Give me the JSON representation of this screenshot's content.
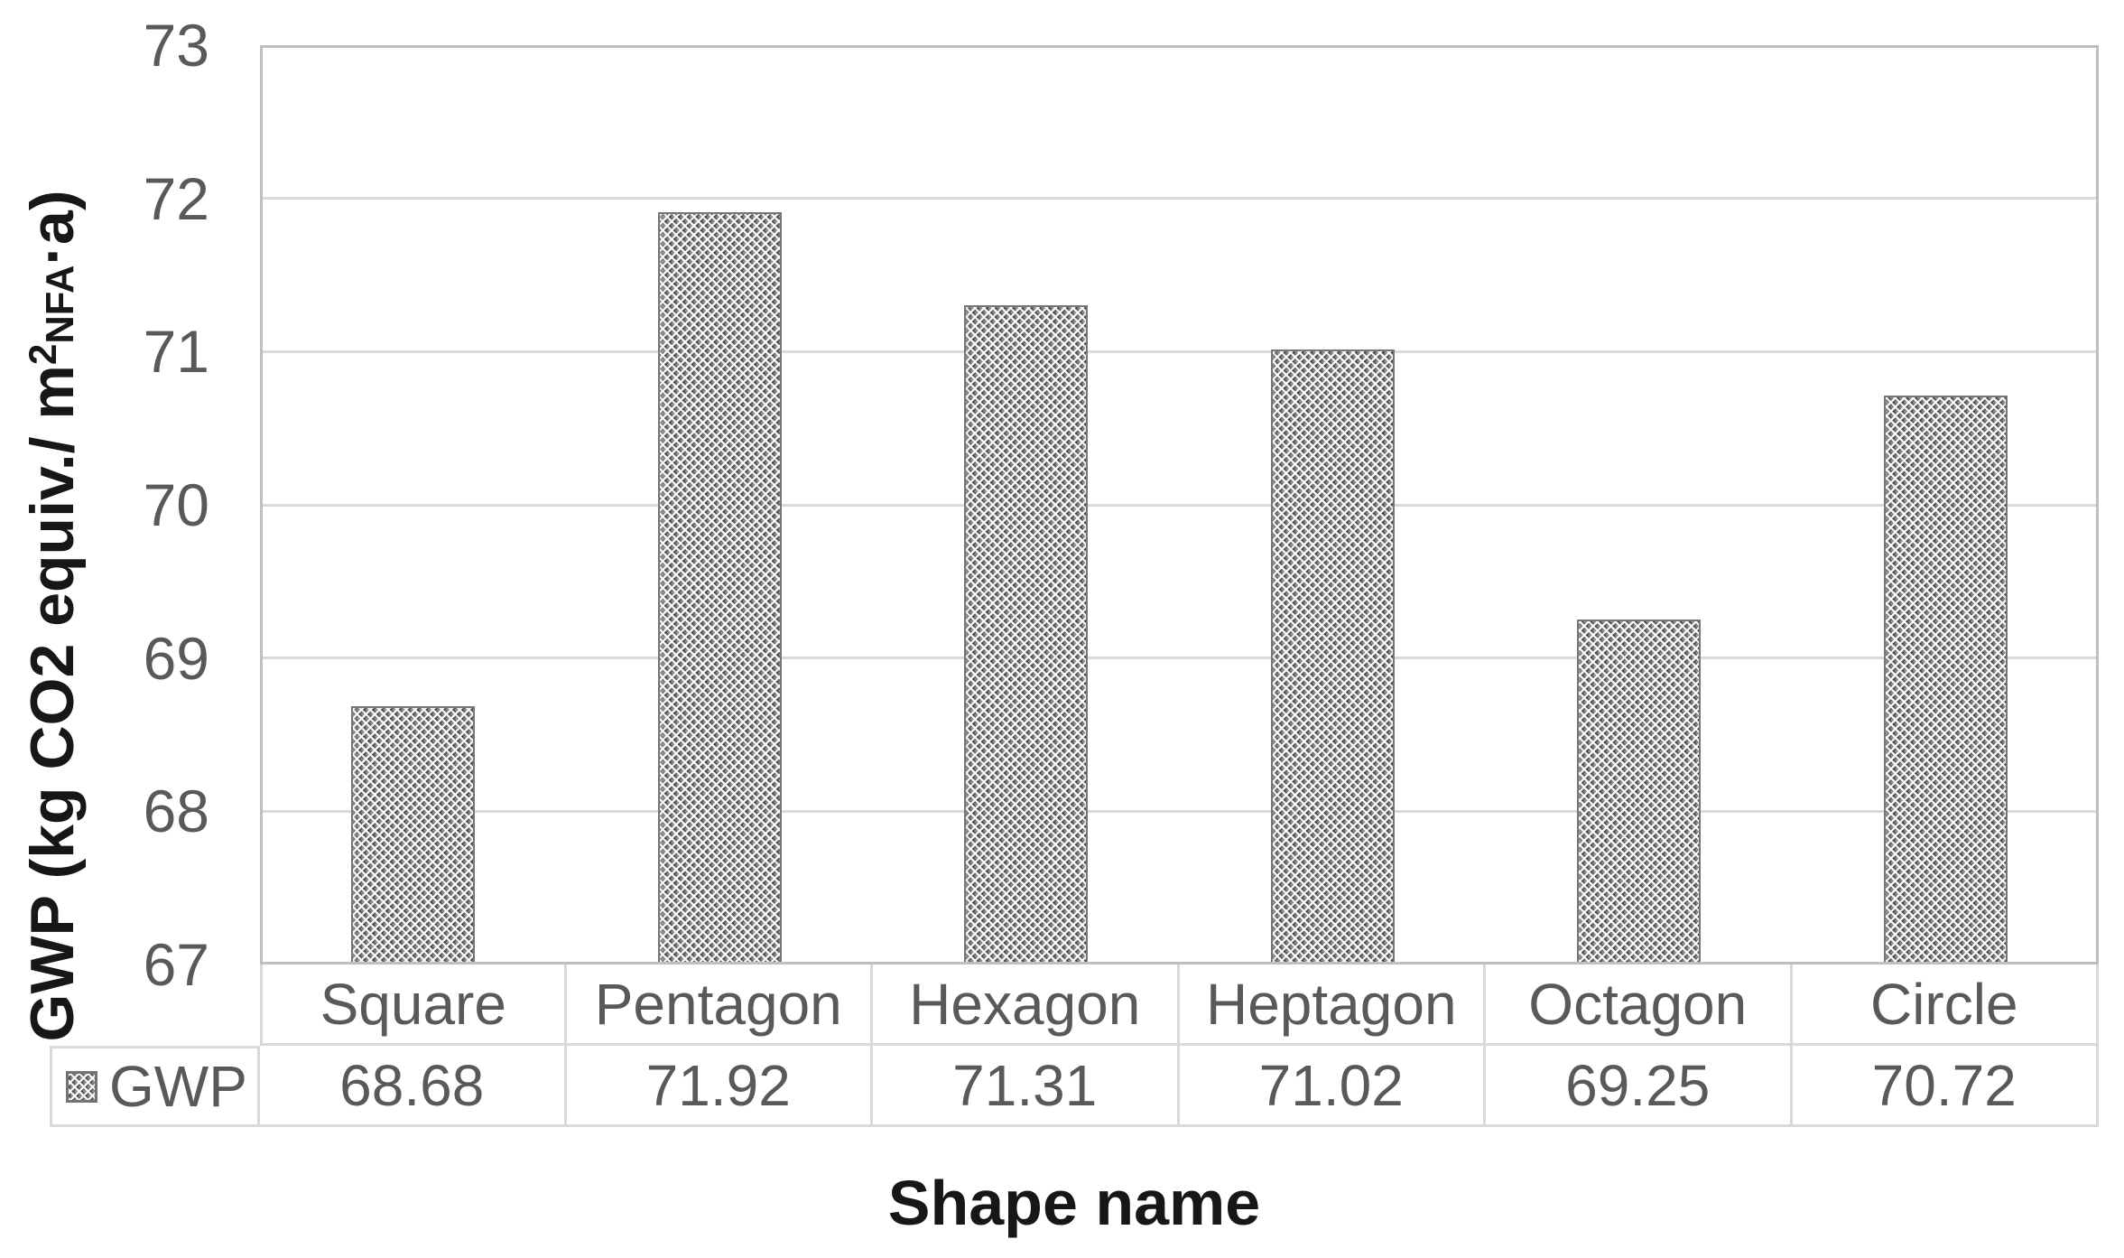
{
  "chart_data": {
    "type": "bar",
    "title": "",
    "categories": [
      "Square",
      "Pentagon",
      "Hexagon",
      "Heptagon",
      "Octagon",
      "Circle"
    ],
    "series": [
      {
        "name": "GWP",
        "values": [
          68.68,
          71.92,
          71.31,
          71.02,
          69.25,
          70.72
        ]
      }
    ],
    "xlabel": "Shape name",
    "ylabel": "GWP (kg CO2 equiv./ m²NFA·a)",
    "ylabel_parts": {
      "pre": "GWP (kg CO2 equiv./ m",
      "sup": "2",
      "small": "NFA",
      "post": "·a)"
    },
    "ylim": [
      67,
      73
    ],
    "yticks": [
      73,
      72,
      71,
      70,
      69,
      68,
      67
    ],
    "grid": true,
    "value_decimals": 2,
    "data_table_shown": true,
    "legend": {
      "label": "GWP",
      "swatch": "dotted-diamond-pattern",
      "position": "data-table-left"
    },
    "bar_style": {
      "pattern": "woven dotted diamond",
      "base_color": "#8e8e8e",
      "border_color": "#767676"
    }
  },
  "colors": {
    "background": "#ffffff",
    "axis_text": "#595959",
    "table_text": "#595959",
    "title_text": "#171717",
    "gridline": "#d9d9d9",
    "plot_border": "#bfbfbf",
    "table_border": "#d9d9d9"
  }
}
